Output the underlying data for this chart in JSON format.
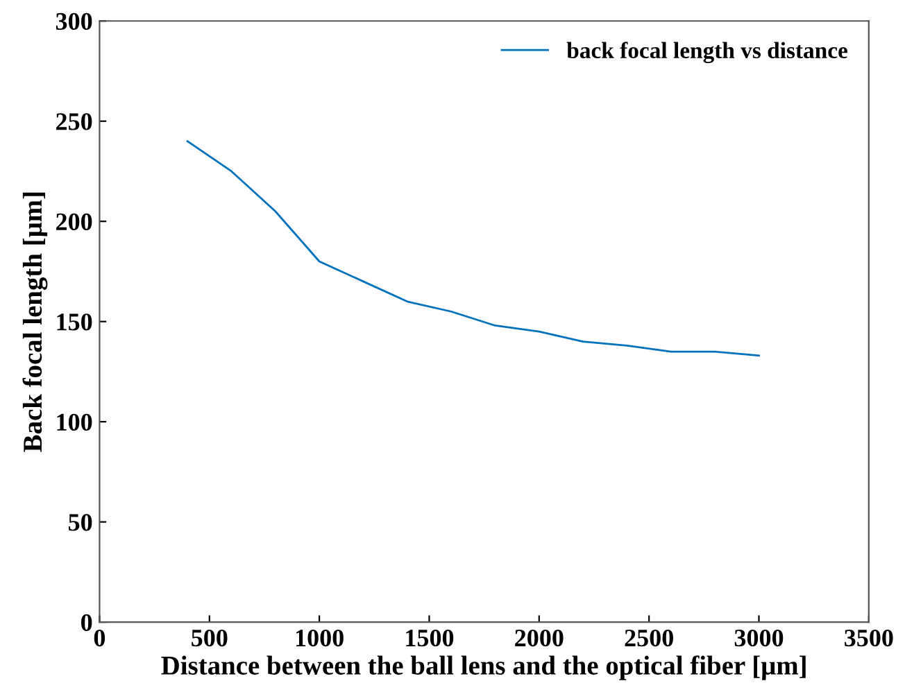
{
  "chart_data": {
    "type": "line",
    "xlabel": "Distance between the ball lens and the optical fiber [μm]",
    "ylabel": "Back focal length [μm]",
    "x": [
      400,
      600,
      800,
      1000,
      1200,
      1400,
      1600,
      1800,
      2000,
      2200,
      2400,
      2600,
      2800,
      3000
    ],
    "series": [
      {
        "name": "back focal length vs distance",
        "color": "#0072bd",
        "values": [
          240,
          225,
          205,
          180,
          170,
          160,
          155,
          148,
          145,
          140,
          138,
          135,
          135,
          133
        ]
      }
    ],
    "xlim": [
      0,
      3500
    ],
    "ylim": [
      0,
      300
    ],
    "xticks": [
      0,
      500,
      1000,
      1500,
      2000,
      2500,
      3000,
      3500
    ],
    "yticks": [
      0,
      50,
      100,
      150,
      200,
      250,
      300
    ],
    "legend": "top right",
    "grid": false,
    "marker": "none",
    "line_style": "solid"
  }
}
